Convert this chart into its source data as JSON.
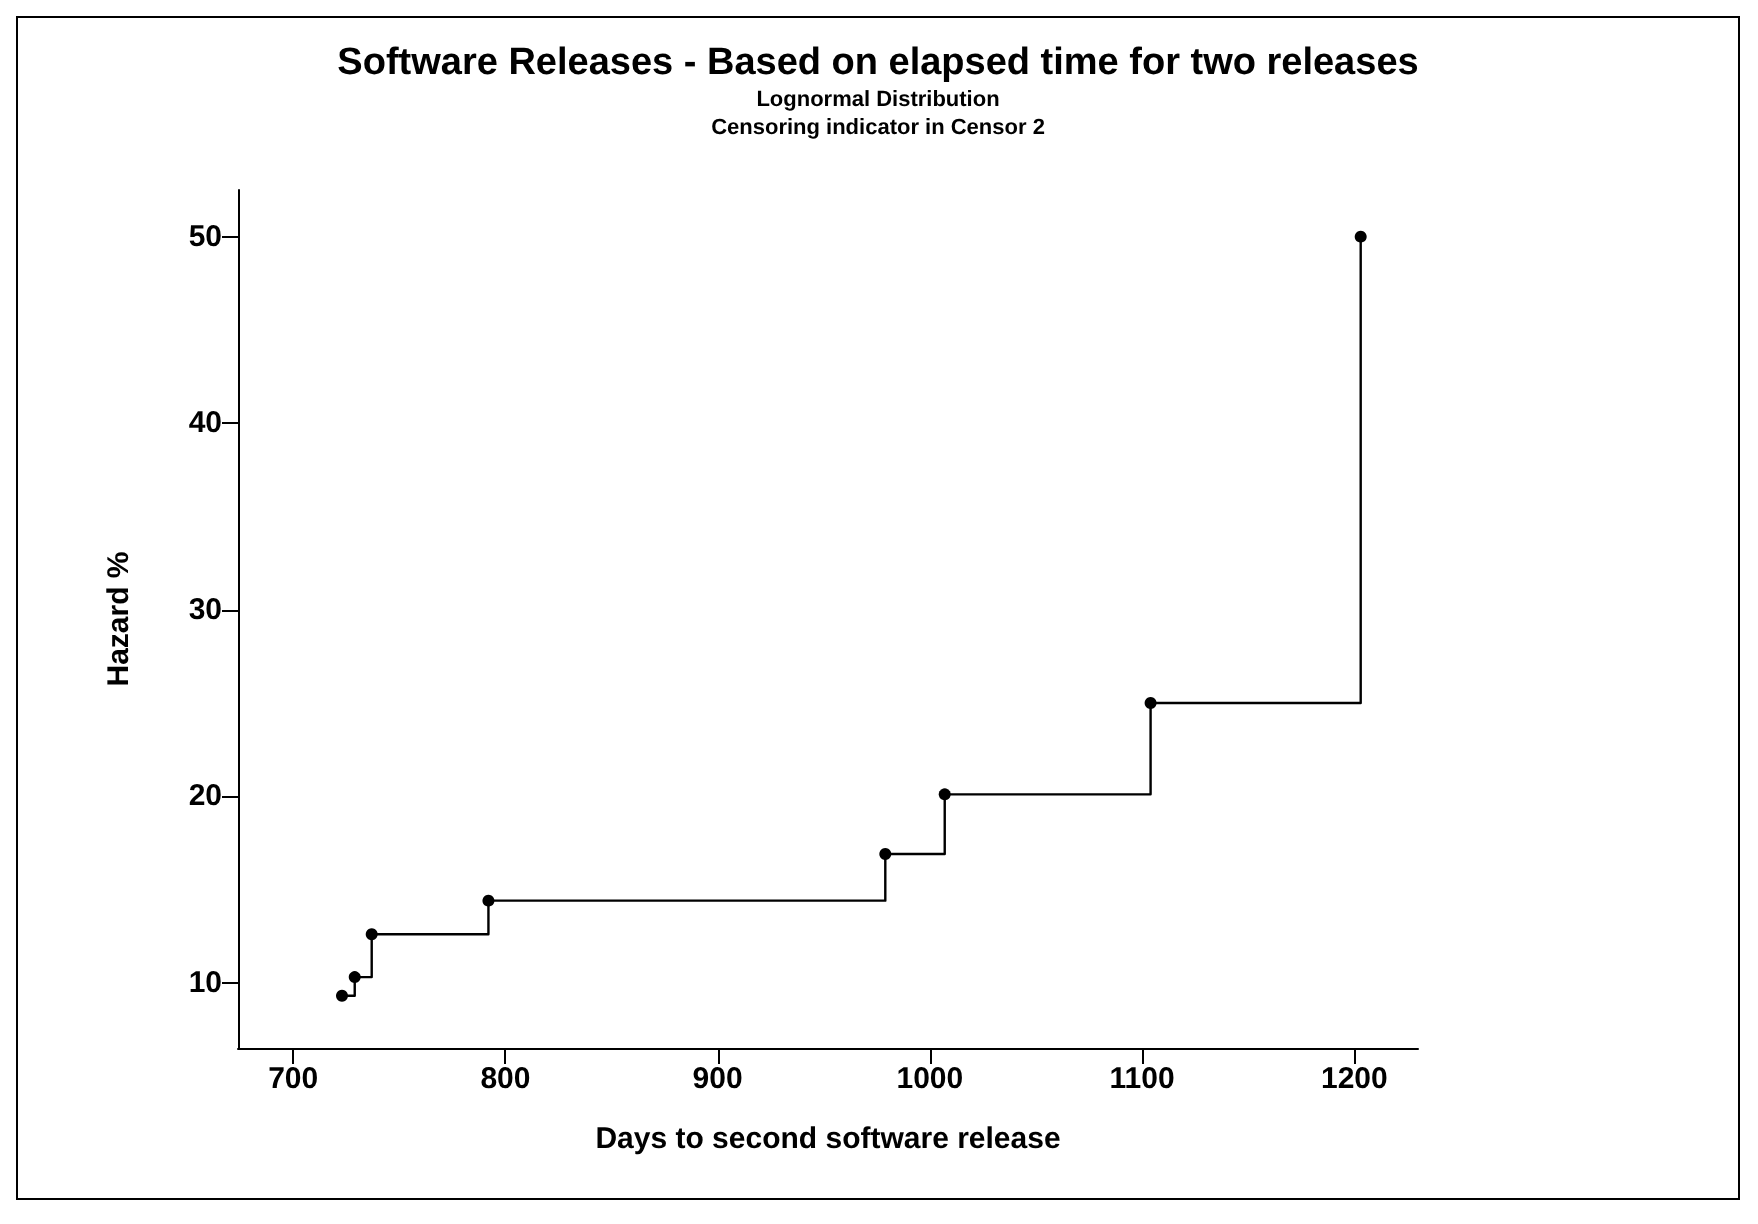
{
  "chart_data": {
    "type": "step",
    "title": "Software Releases - Based on elapsed time for two releases",
    "subtitle": "Lognormal Distribution\nCensoring indicator in Censor 2",
    "xlabel": "Days to second software release",
    "ylabel": "Hazard %",
    "x": [
      723,
      729,
      737,
      792,
      979,
      1007,
      1104,
      1203
    ],
    "series": [
      {
        "color": "#000000",
        "values": [
          9.3,
          10.3,
          12.6,
          14.4,
          16.9,
          20.1,
          25.0,
          50.0
        ]
      }
    ],
    "xlim": [
      674,
      1230
    ],
    "ylim": [
      6.5,
      52.5
    ],
    "xticks": [
      700,
      800,
      900,
      1000,
      1100,
      1200
    ],
    "yticks": [
      10,
      20,
      30,
      40,
      50
    ],
    "marker": "circle",
    "line_style": "solid",
    "grid": false
  }
}
